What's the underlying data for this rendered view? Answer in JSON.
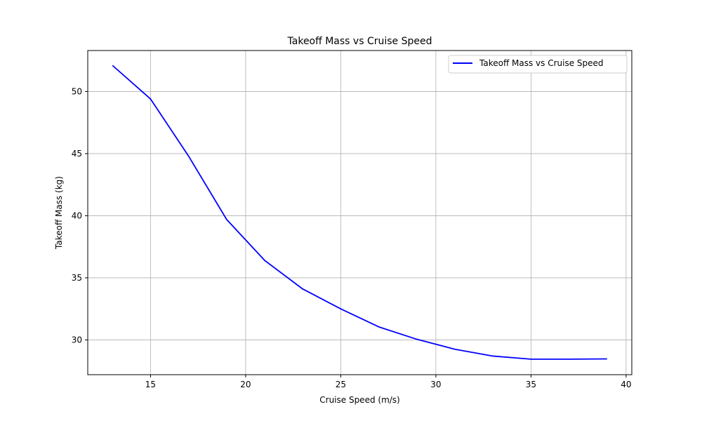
{
  "chart_data": {
    "type": "line",
    "title": "Takeoff Mass vs Cruise Speed",
    "xlabel": "Cruise Speed (m/s)",
    "ylabel": "Takeoff Mass (kg)",
    "xlim": [
      11.7,
      40.3
    ],
    "ylim": [
      27.2,
      53.3
    ],
    "xticks": [
      15,
      20,
      25,
      30,
      35,
      40
    ],
    "yticks": [
      30,
      35,
      40,
      45,
      50
    ],
    "grid": true,
    "legend_position": "top-right",
    "series": [
      {
        "name": "Takeoff Mass vs Cruise Speed",
        "color": "#0000ff",
        "x": [
          13,
          15,
          17,
          19,
          21,
          23,
          25,
          27,
          29,
          31,
          33,
          35,
          37,
          39
        ],
        "y": [
          52.1,
          49.4,
          44.8,
          39.7,
          36.4,
          34.1,
          32.5,
          31.05,
          30.05,
          29.25,
          28.7,
          28.45,
          28.45,
          28.47
        ]
      }
    ]
  }
}
